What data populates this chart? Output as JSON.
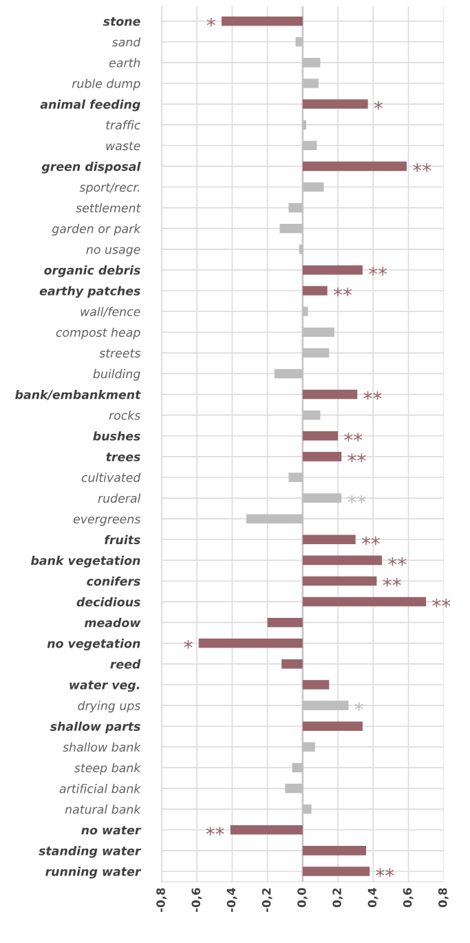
{
  "chart_data": {
    "type": "bar",
    "orientation": "horizontal",
    "categories": [
      "stone",
      "sand",
      "earth",
      "ruble dump",
      "animal feeding",
      "traffic",
      "waste",
      "green disposal",
      "sport/recr.",
      "settlement",
      "garden or park",
      "no usage",
      "organic debris",
      "earthy patches",
      "wall/fence",
      "compost heap",
      "streets",
      "building",
      "bank/embankment",
      "rocks",
      "bushes",
      "trees",
      "cultivated",
      "ruderal",
      "evergreens",
      "fruits",
      "bank vegetation",
      "conifers",
      "decidious",
      "meadow",
      "no vegetation",
      "reed",
      "water veg.",
      "drying ups",
      "shallow parts",
      "shallow bank",
      "steep bank",
      "artificial bank",
      "natural bank",
      "no water",
      "standing water",
      "running water"
    ],
    "values": [
      -0.46,
      -0.04,
      0.1,
      0.09,
      0.37,
      0.02,
      0.08,
      0.59,
      0.12,
      -0.08,
      -0.13,
      -0.02,
      0.34,
      0.14,
      0.03,
      0.18,
      0.15,
      -0.16,
      0.31,
      0.1,
      0.2,
      0.22,
      -0.08,
      0.22,
      -0.32,
      0.3,
      0.45,
      0.42,
      0.7,
      -0.2,
      -0.59,
      -0.12,
      0.15,
      0.26,
      0.34,
      0.07,
      -0.06,
      -0.1,
      0.05,
      -0.41,
      0.36,
      0.38
    ],
    "colors": [
      "#98646a",
      "#bdbdbd",
      "#bdbdbd",
      "#bdbdbd",
      "#98646a",
      "#bdbdbd",
      "#bdbdbd",
      "#98646a",
      "#bdbdbd",
      "#bdbdbd",
      "#bdbdbd",
      "#bdbdbd",
      "#98646a",
      "#98646a",
      "#bdbdbd",
      "#bdbdbd",
      "#bdbdbd",
      "#bdbdbd",
      "#98646a",
      "#bdbdbd",
      "#98646a",
      "#98646a",
      "#bdbdbd",
      "#bdbdbd",
      "#bdbdbd",
      "#98646a",
      "#98646a",
      "#98646a",
      "#98646a",
      "#98646a",
      "#98646a",
      "#98646a",
      "#98646a",
      "#bdbdbd",
      "#98646a",
      "#bdbdbd",
      "#bdbdbd",
      "#bdbdbd",
      "#bdbdbd",
      "#98646a",
      "#98646a",
      "#98646a"
    ],
    "xlim": [
      -0.8,
      0.8
    ],
    "xticks": [
      {
        "value": -0.8,
        "label": "-0,8"
      },
      {
        "value": -0.6,
        "label": "-0,6"
      },
      {
        "value": -0.4,
        "label": "-0,4"
      },
      {
        "value": -0.2,
        "label": "-0,2"
      },
      {
        "value": 0.0,
        "label": "0,0"
      },
      {
        "value": 0.2,
        "label": "0,2"
      },
      {
        "value": 0.4,
        "label": "0,4"
      },
      {
        "value": 0.6,
        "label": "0,6"
      },
      {
        "value": 0.8,
        "label": "0,8"
      }
    ],
    "grid": true,
    "annotations": [
      {
        "text": "*",
        "x": -0.46,
        "y": "stone"
      },
      {
        "text": "*",
        "x": 0.37,
        "y": "animal feeding"
      },
      {
        "text": "**",
        "x": 0.59,
        "y": "green disposal"
      },
      {
        "text": "**",
        "x": 0.34,
        "y": "organic debris"
      },
      {
        "text": "**",
        "x": 0.14,
        "y": "earthy patches"
      },
      {
        "text": "**",
        "x": 0.31,
        "y": "bank/embankment"
      },
      {
        "text": "**",
        "x": 0.2,
        "y": "bushes"
      },
      {
        "text": "**",
        "x": 0.22,
        "y": "trees"
      },
      {
        "text": "**",
        "x": 0.22,
        "y": "ruderal"
      },
      {
        "text": "**",
        "x": 0.3,
        "y": "fruits"
      },
      {
        "text": "**",
        "x": 0.45,
        "y": "bank vegetation"
      },
      {
        "text": "**",
        "x": 0.42,
        "y": "conifers"
      },
      {
        "text": "**",
        "x": 0.7,
        "y": "decidious"
      },
      {
        "text": "*",
        "x": -0.59,
        "y": "no vegetation"
      },
      {
        "text": "*",
        "x": 0.26,
        "y": "drying ups"
      },
      {
        "text": "**",
        "x": -0.41,
        "y": "no water"
      },
      {
        "text": "**",
        "x": 0.38,
        "y": "running water"
      }
    ]
  }
}
